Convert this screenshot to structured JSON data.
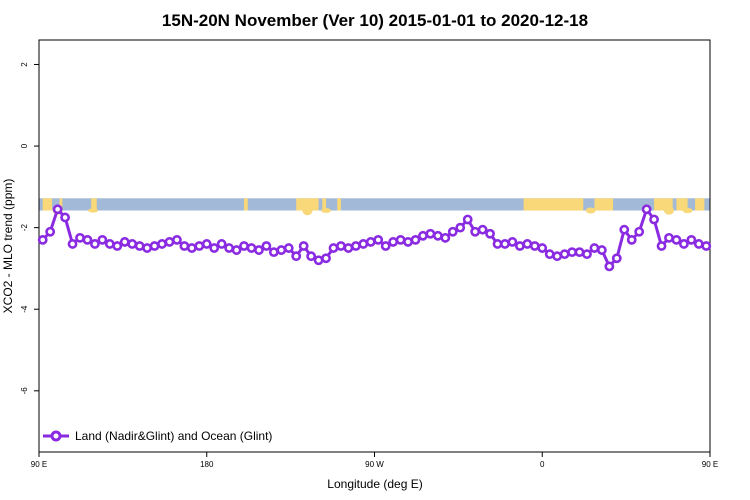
{
  "chart_data": {
    "type": "line",
    "title": "15N-20N November (Ver 10)   2015-01-01 to 2020-12-18",
    "xlabel": "Longitude (deg E)",
    "ylabel": "XCO2 - MLO trend (ppm)",
    "xlim": [
      90,
      450
    ],
    "ylim": [
      -7.5,
      2.6
    ],
    "x_ticks": [
      {
        "value": 90,
        "label": "90 E"
      },
      {
        "value": 180,
        "label": "180"
      },
      {
        "value": 270,
        "label": "90 W"
      },
      {
        "value": 360,
        "label": "0"
      },
      {
        "value": 450,
        "label": "90 E"
      },
      {
        "value": 540,
        "label": "180"
      }
    ],
    "y_ticks": [
      {
        "value": 2,
        "label": "2"
      },
      {
        "value": 0,
        "label": "0"
      },
      {
        "value": -2,
        "label": "-2"
      },
      {
        "value": -4,
        "label": "-4"
      },
      {
        "value": -6,
        "label": "-6"
      }
    ],
    "legend": {
      "position": "bottom-left",
      "label": "Land (Nadir&Glint) and Ocean (Glint)"
    },
    "land_ocean_band": {
      "y_top": -1.28,
      "y_bottom": -1.58,
      "ocean_color": "#a3b9d8",
      "land_color": "#f8d878"
    },
    "series_color": "#8a2be2",
    "x": [
      92,
      96,
      100,
      104,
      108,
      112,
      116,
      120,
      124,
      128,
      132,
      136,
      140,
      144,
      148,
      152,
      156,
      160,
      164,
      168,
      172,
      176,
      180,
      184,
      188,
      192,
      196,
      200,
      204,
      208,
      212,
      216,
      220,
      224,
      228,
      232,
      236,
      240,
      244,
      248,
      252,
      256,
      260,
      264,
      268,
      272,
      276,
      280,
      284,
      288,
      292,
      296,
      300,
      304,
      308,
      312,
      316,
      320,
      324,
      328,
      332,
      336,
      340,
      344,
      348,
      352,
      356,
      360,
      364,
      368,
      372,
      376,
      380,
      384,
      388,
      392,
      396,
      400,
      404,
      408,
      412,
      416,
      420,
      424,
      428,
      432,
      436,
      440,
      444,
      448
    ],
    "y": [
      -2.3,
      -2.1,
      -1.55,
      -1.75,
      -2.4,
      -2.25,
      -2.3,
      -2.4,
      -2.3,
      -2.4,
      -2.45,
      -2.35,
      -2.4,
      -2.45,
      -2.5,
      -2.45,
      -2.4,
      -2.35,
      -2.3,
      -2.45,
      -2.5,
      -2.45,
      -2.4,
      -2.5,
      -2.4,
      -2.5,
      -2.55,
      -2.45,
      -2.5,
      -2.55,
      -2.45,
      -2.6,
      -2.55,
      -2.5,
      -2.7,
      -2.45,
      -2.7,
      -2.8,
      -2.75,
      -2.5,
      -2.45,
      -2.5,
      -2.45,
      -2.4,
      -2.35,
      -2.3,
      -2.45,
      -2.35,
      -2.3,
      -2.35,
      -2.3,
      -2.2,
      -2.15,
      -2.2,
      -2.25,
      -2.1,
      -2.0,
      -1.8,
      -2.1,
      -2.05,
      -2.15,
      -2.4,
      -2.4,
      -2.35,
      -2.45,
      -2.4,
      -2.45,
      -2.5,
      -2.65,
      -2.7,
      -2.65,
      -2.6,
      -2.6,
      -2.65,
      -2.5,
      -2.55,
      -2.95,
      -2.75,
      -2.05,
      -2.3,
      -2.1,
      -1.55,
      -1.8,
      -2.45,
      -2.25,
      -2.3,
      -2.4,
      -2.3,
      -2.4,
      -2.45
    ]
  }
}
